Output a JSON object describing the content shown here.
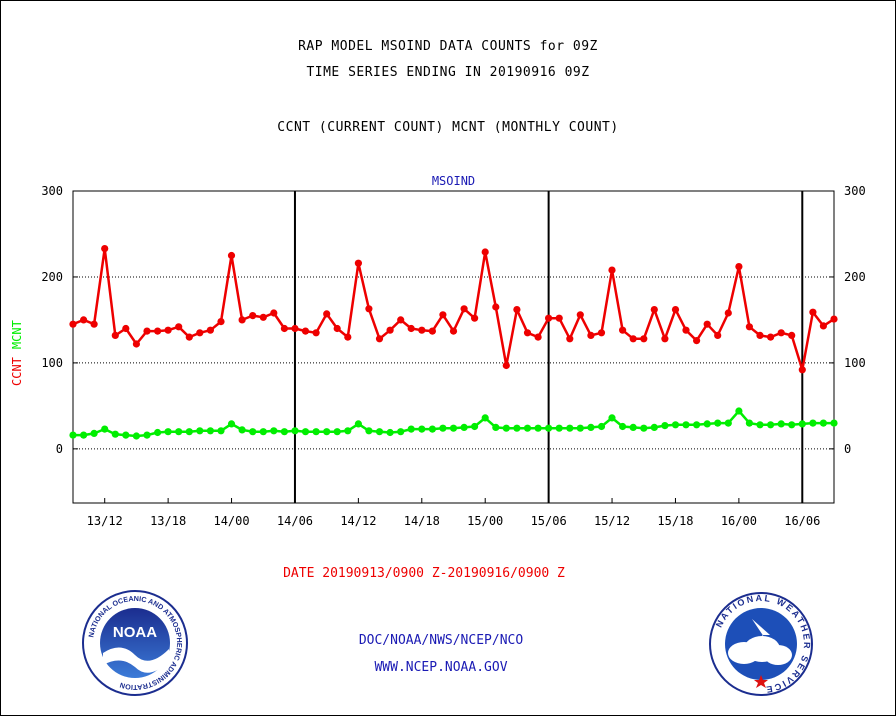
{
  "header": {
    "line1": "RAP MODEL MSOIND DATA COUNTS for 09Z",
    "line2": "TIME SERIES ENDING IN 20190916 09Z",
    "line3": "CCNT (CURRENT COUNT) MCNT (MONTHLY COUNT)"
  },
  "chart_data": {
    "type": "line",
    "title": "MSOIND",
    "ylabel_ccnt": "CCNT",
    "ylabel_mcnt": "MCNT",
    "ylim": [
      -63,
      300
    ],
    "yticks": [
      "300",
      "200",
      "100",
      "0"
    ],
    "ytick_values": [
      300,
      200,
      100,
      0
    ],
    "xticks": [
      "13/12",
      "13/18",
      "14/00",
      "14/06",
      "14/12",
      "14/18",
      "15/00",
      "15/06",
      "15/12",
      "15/18",
      "16/00",
      "16/06"
    ],
    "xtick_hours": [
      3,
      9,
      15,
      21,
      27,
      33,
      39,
      45,
      51,
      57,
      63,
      69
    ],
    "x_start": "2019-09-13 09Z",
    "x_end": "2019-09-16 09Z",
    "day_boundaries_hours": [
      21,
      45,
      69
    ],
    "grid_y": [
      200,
      100,
      0
    ],
    "series": [
      {
        "name": "CCNT",
        "color": "#ee0000",
        "values": [
          145,
          150,
          145,
          233,
          132,
          140,
          122,
          137,
          137,
          138,
          142,
          130,
          135,
          138,
          148,
          225,
          150,
          155,
          153,
          158,
          140,
          140,
          137,
          135,
          157,
          140,
          130,
          216,
          163,
          128,
          138,
          150,
          140,
          138,
          137,
          156,
          137,
          163,
          152,
          229,
          165,
          97,
          162,
          135,
          130,
          152,
          152,
          128,
          156,
          132,
          135,
          208,
          138,
          128,
          128,
          162,
          128,
          162,
          138,
          126,
          145,
          132,
          158,
          212,
          142,
          132,
          130,
          135,
          132,
          92,
          159,
          143,
          151
        ]
      },
      {
        "name": "MCNT",
        "color": "#00ee00",
        "values": [
          16,
          16,
          18,
          23,
          17,
          16,
          15,
          16,
          19,
          20,
          20,
          20,
          21,
          21,
          21,
          29,
          22,
          20,
          20,
          21,
          20,
          21,
          20,
          20,
          20,
          20,
          21,
          29,
          21,
          20,
          19,
          20,
          23,
          23,
          23,
          24,
          24,
          25,
          26,
          36,
          25,
          24,
          24,
          24,
          24,
          24,
          24,
          24,
          24,
          25,
          26,
          36,
          26,
          25,
          24,
          25,
          27,
          28,
          28,
          28,
          29,
          30,
          30,
          44,
          30,
          28,
          28,
          29,
          28,
          29,
          30,
          30,
          30
        ]
      }
    ]
  },
  "footer": {
    "date_range": "DATE 20190913/0900 Z-20190916/0900 Z",
    "org_line": "DOC/NOAA/NWS/NCEP/NCO",
    "url_line": "WWW.NCEP.NOAA.GOV"
  },
  "logos": {
    "noaa": {
      "icon": "noaa-logo",
      "center_text": "NOAA",
      "ring_text": "NATIONAL OCEANIC AND ATMOSPHERIC ADMINISTRATION",
      "bottom_text": "U.S. DEPARTMENT OF COMMERCE"
    },
    "nws": {
      "icon": "nws-logo",
      "ring_text": "NATIONAL WEATHER SERVICE"
    }
  }
}
